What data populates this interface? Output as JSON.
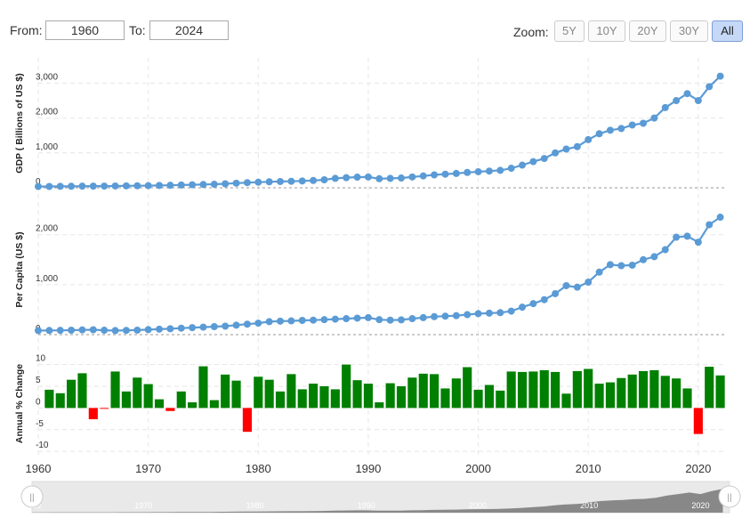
{
  "controls": {
    "from_label": "From:",
    "from_value": "1960",
    "to_label": "To:",
    "to_value": "2024",
    "zoom_label": "Zoom:",
    "zoom_buttons": [
      "5Y",
      "10Y",
      "20Y",
      "30Y",
      "All"
    ],
    "zoom_active": "All"
  },
  "colors": {
    "line": "#5b9bd5",
    "bar_positive": "#008000",
    "bar_negative": "#ff0000",
    "navigator_fill": "#888888"
  },
  "chart_data": [
    {
      "type": "line",
      "ylabel": "GDP ( Billions of US $)",
      "ylim": [
        0,
        3700
      ],
      "yticks": [
        "0",
        "1,000",
        "2,000",
        "3,000"
      ],
      "x": [
        1960,
        1961,
        1962,
        1963,
        1964,
        1965,
        1966,
        1967,
        1968,
        1969,
        1970,
        1971,
        1972,
        1973,
        1974,
        1975,
        1976,
        1977,
        1978,
        1979,
        1980,
        1981,
        1982,
        1983,
        1984,
        1985,
        1986,
        1987,
        1988,
        1989,
        1990,
        1991,
        1992,
        1993,
        1994,
        1995,
        1996,
        1997,
        1998,
        1999,
        2000,
        2001,
        2002,
        2003,
        2004,
        2005,
        2006,
        2007,
        2008,
        2009,
        2010,
        2011,
        2012,
        2013,
        2014,
        2015,
        2016,
        2017,
        2018,
        2019,
        2020,
        2021,
        2022
      ],
      "values": [
        37,
        38,
        42,
        44,
        47,
        48,
        49,
        52,
        55,
        58,
        62,
        67,
        72,
        80,
        87,
        95,
        101,
        115,
        132,
        148,
        160,
        172,
        180,
        186,
        196,
        210,
        230,
        270,
        290,
        305,
        310,
        260,
        270,
        280,
        310,
        340,
        370,
        390,
        410,
        440,
        460,
        480,
        500,
        560,
        650,
        750,
        840,
        1000,
        1110,
        1180,
        1380,
        1550,
        1650,
        1700,
        1800,
        1850,
        2000,
        2300,
        2500,
        2700,
        2500,
        2900,
        3200
      ],
      "xticks": [
        "1960",
        "1970",
        "1980",
        "1990",
        "2000",
        "2010",
        "2020"
      ]
    },
    {
      "type": "line",
      "ylabel": "Per Capita (US $)",
      "ylim": [
        0,
        2600
      ],
      "yticks": [
        "0",
        "1,000",
        "2,000"
      ],
      "x": [
        1960,
        1961,
        1962,
        1963,
        1964,
        1965,
        1966,
        1967,
        1968,
        1969,
        1970,
        1971,
        1972,
        1973,
        1974,
        1975,
        1976,
        1977,
        1978,
        1979,
        1980,
        1981,
        1982,
        1983,
        1984,
        1985,
        1986,
        1987,
        1988,
        1989,
        1990,
        1991,
        1992,
        1993,
        1994,
        1995,
        1996,
        1997,
        1998,
        1999,
        2000,
        2001,
        2002,
        2003,
        2004,
        2005,
        2006,
        2007,
        2008,
        2009,
        2010,
        2011,
        2012,
        2013,
        2014,
        2015,
        2016,
        2017,
        2018,
        2019,
        2020,
        2021,
        2022
      ],
      "values": [
        82,
        84,
        86,
        89,
        95,
        98,
        88,
        82,
        85,
        90,
        100,
        110,
        118,
        130,
        140,
        150,
        160,
        170,
        190,
        210,
        230,
        260,
        270,
        275,
        285,
        290,
        300,
        310,
        320,
        330,
        340,
        300,
        290,
        295,
        320,
        340,
        360,
        370,
        380,
        400,
        420,
        430,
        440,
        470,
        550,
        620,
        700,
        820,
        980,
        950,
        1050,
        1250,
        1400,
        1380,
        1390,
        1500,
        1560,
        1700,
        1950,
        1970,
        1850,
        2200,
        2350
      ]
    },
    {
      "type": "bar",
      "ylabel": "Annual % Change",
      "ylim": [
        -11,
        13
      ],
      "yticks": [
        "-10",
        "-5",
        "0",
        "5",
        "10"
      ],
      "x": [
        1961,
        1962,
        1963,
        1964,
        1965,
        1966,
        1967,
        1968,
        1969,
        1970,
        1971,
        1972,
        1973,
        1974,
        1975,
        1976,
        1977,
        1978,
        1979,
        1980,
        1981,
        1982,
        1983,
        1984,
        1985,
        1986,
        1987,
        1988,
        1989,
        1990,
        1991,
        1992,
        1993,
        1994,
        1995,
        1996,
        1997,
        1998,
        1999,
        2000,
        2001,
        2002,
        2003,
        2004,
        2005,
        2006,
        2007,
        2008,
        2009,
        2010,
        2011,
        2012,
        2013,
        2014,
        2015,
        2016,
        2017,
        2018,
        2019,
        2020,
        2021,
        2022
      ],
      "values": [
        4.2,
        3.4,
        6.5,
        8.0,
        -2.6,
        -0.2,
        8.4,
        3.8,
        7.0,
        5.5,
        2.0,
        -0.7,
        3.8,
        1.3,
        9.6,
        1.8,
        7.7,
        6.3,
        -5.5,
        7.2,
        6.5,
        3.8,
        7.8,
        4.3,
        5.6,
        5.0,
        4.3,
        10.0,
        6.4,
        5.6,
        1.3,
        5.7,
        5.0,
        7.0,
        7.9,
        7.8,
        4.5,
        6.8,
        9.4,
        4.2,
        5.3,
        4.0,
        8.4,
        8.3,
        8.4,
        8.7,
        8.3,
        3.3,
        8.5,
        9.0,
        5.6,
        5.9,
        6.9,
        7.7,
        8.5,
        8.7,
        7.4,
        6.8,
        4.5,
        -6.0,
        9.5,
        7.5
      ],
      "xticks": [
        "1960",
        "1970",
        "1980",
        "1990",
        "2000",
        "2010",
        "2020"
      ]
    }
  ],
  "navigator": {
    "year_labels": [
      "1960",
      "1970",
      "1980",
      "1990",
      "2000",
      "2010",
      "2020"
    ],
    "handle_glyph": "||"
  }
}
